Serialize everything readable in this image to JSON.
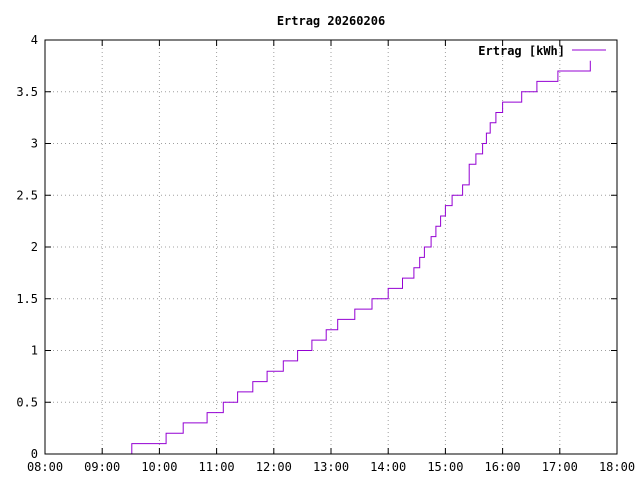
{
  "chart_data": {
    "type": "line",
    "title": "Ertrag 20260206",
    "xlabel": "",
    "ylabel": "",
    "x_tick_labels": [
      "08:00",
      "09:00",
      "10:00",
      "11:00",
      "12:00",
      "13:00",
      "14:00",
      "15:00",
      "16:00",
      "17:00",
      "18:00"
    ],
    "y_tick_labels": [
      "0",
      "0.5",
      "1",
      "1.5",
      "2",
      "2.5",
      "3",
      "3.5",
      "4"
    ],
    "xlim": [
      "08:00",
      "18:00"
    ],
    "ylim": [
      0,
      4
    ],
    "grid": true,
    "legend_position": "top-right",
    "series": [
      {
        "name": "Ertrag [kWh]",
        "color": "#9400d3",
        "step": true,
        "x": [
          "09:30",
          "09:31",
          "10:07",
          "10:25",
          "10:50",
          "11:07",
          "11:22",
          "11:38",
          "11:53",
          "12:10",
          "12:25",
          "12:40",
          "12:55",
          "13:07",
          "13:25",
          "13:43",
          "14:00",
          "14:15",
          "14:27",
          "14:33",
          "14:38",
          "14:45",
          "14:50",
          "14:55",
          "15:00",
          "15:07",
          "15:18",
          "15:25",
          "15:32",
          "15:39",
          "15:43",
          "15:47",
          "15:53",
          "16:00",
          "16:20",
          "16:36",
          "16:58",
          "17:32"
        ],
        "y": [
          0,
          0.1,
          0.2,
          0.3,
          0.4,
          0.5,
          0.6,
          0.7,
          0.8,
          0.9,
          1.0,
          1.1,
          1.2,
          1.3,
          1.4,
          1.5,
          1.6,
          1.7,
          1.8,
          1.9,
          2.0,
          2.1,
          2.2,
          2.3,
          2.4,
          2.5,
          2.6,
          2.8,
          2.9,
          3.0,
          3.1,
          3.2,
          3.3,
          3.4,
          3.5,
          3.6,
          3.7,
          3.8
        ]
      }
    ]
  }
}
